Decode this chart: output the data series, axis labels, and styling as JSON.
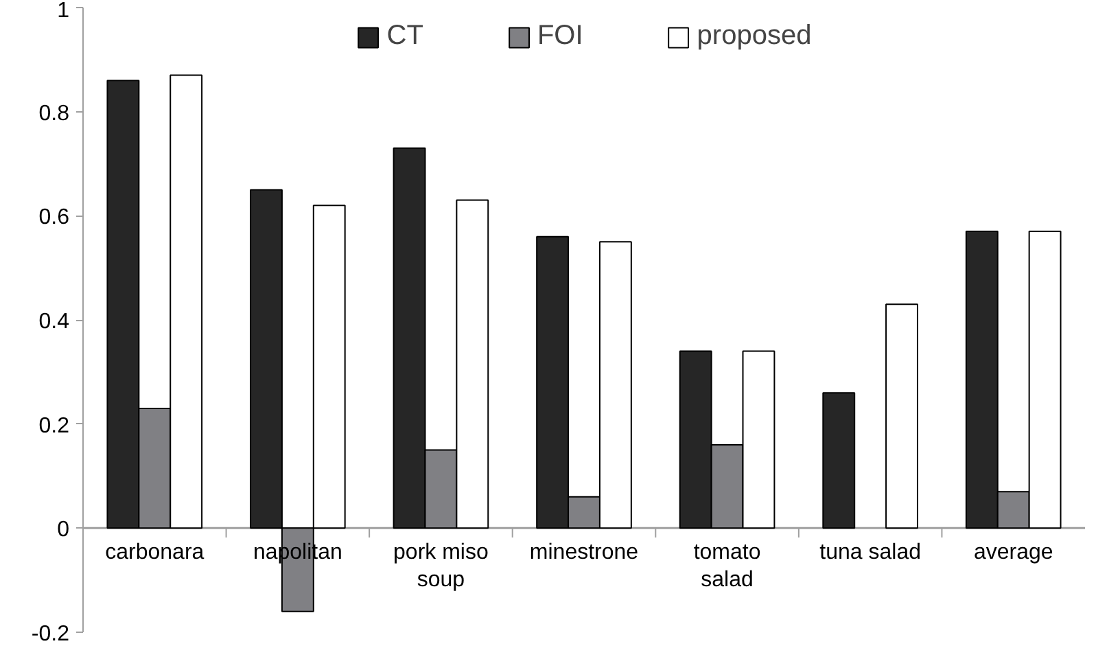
{
  "chart_data": {
    "type": "bar",
    "categories": [
      "carbonara",
      "napolitan",
      "pork miso soup",
      "minestrone",
      "tomato salad",
      "tuna salad",
      "average"
    ],
    "series": [
      {
        "name": "CT",
        "color": "#262626",
        "values": [
          0.86,
          0.65,
          0.73,
          0.56,
          0.34,
          0.26,
          0.57
        ]
      },
      {
        "name": "FOI",
        "color": "#808084",
        "values": [
          0.23,
          -0.16,
          0.15,
          0.06,
          0.16,
          0.0,
          0.07
        ]
      },
      {
        "name": "proposed",
        "color": "#ffffff",
        "values": [
          0.87,
          0.62,
          0.63,
          0.55,
          0.34,
          0.43,
          0.57
        ]
      }
    ],
    "ylim": [
      -0.2,
      1
    ],
    "yticks": [
      -0.2,
      0,
      0.2,
      0.4,
      0.6,
      0.8,
      1
    ],
    "grid": false,
    "legend": "top"
  }
}
